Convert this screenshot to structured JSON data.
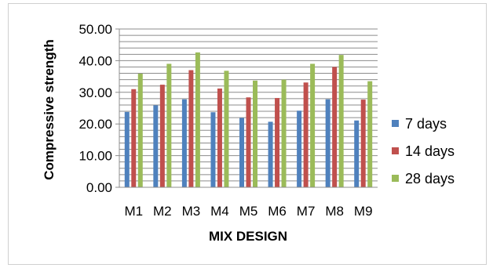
{
  "chart_data": {
    "type": "bar",
    "title": "",
    "xlabel": "MIX DESIGN",
    "ylabel": "Compressive strength",
    "ylim": [
      0,
      50
    ],
    "ytick_step": 2,
    "ylabel_step": 10,
    "grid": true,
    "legend_position": "right",
    "categories": [
      "M1",
      "M2",
      "M3",
      "M4",
      "M5",
      "M6",
      "M7",
      "M8",
      "M9"
    ],
    "ytick_labels": [
      "0.00",
      "10.00",
      "20.00",
      "30.00",
      "40.00",
      "50.00"
    ],
    "series": [
      {
        "name": "7 days",
        "color": "#4F81BD",
        "values": [
          23.8,
          25.9,
          27.8,
          23.7,
          21.9,
          20.7,
          24.2,
          27.8,
          21.1
        ]
      },
      {
        "name": "14 days",
        "color": "#C0504D",
        "values": [
          31.0,
          32.4,
          37.0,
          31.2,
          28.4,
          28.2,
          33.1,
          38.0,
          27.7
        ]
      },
      {
        "name": "28 days",
        "color": "#9BBB59",
        "values": [
          35.9,
          39.0,
          42.6,
          36.8,
          33.7,
          34.0,
          39.0,
          41.8,
          33.5
        ]
      }
    ]
  }
}
